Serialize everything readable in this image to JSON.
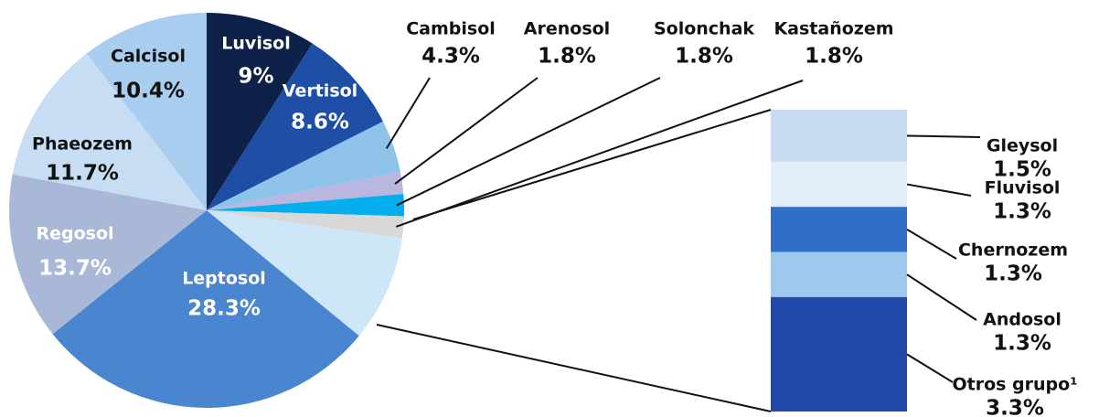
{
  "chart_data": {
    "type": "pie",
    "categories": [
      "Luvisol",
      "Vertisol",
      "Cambisol",
      "Arenosol",
      "Solonchak",
      "Kastañozem",
      null,
      "Leptosol",
      "Regosol",
      "Phaeozem",
      "Calcisol"
    ],
    "values": [
      9,
      8.6,
      4.3,
      1.8,
      1.8,
      1.8,
      8.7,
      28.3,
      13.7,
      11.7,
      10.4
    ],
    "value_labels": [
      "9%",
      "8.6%",
      "4.3%",
      "1.8%",
      "1.8%",
      "1.8%",
      null,
      "28.3%",
      "13.7%",
      "11.7%",
      "10.4%"
    ],
    "colors": [
      "#0e2148",
      "#1f4ea6",
      "#8fc3ea",
      "#b9b7e0",
      "#05aeef",
      "#d8d8d8",
      "#cde6f8",
      "#4a85cf",
      "#a9b8d6",
      "#c6ddf3",
      "#a9cdef"
    ],
    "bar": {
      "categories": [
        "Gleysol",
        "Fluvisol",
        "Chernozem",
        "Andosol",
        "Otros grupo¹"
      ],
      "values": [
        1.5,
        1.3,
        1.3,
        1.3,
        3.3
      ],
      "value_labels": [
        "1.5%",
        "1.3%",
        "1.3%",
        "1.3%",
        "3.3%"
      ],
      "colors": [
        "#c9daf3",
        "#e4eef9",
        "#2f6fc6",
        "#9fc8ee",
        "#1f48a8"
      ]
    }
  }
}
